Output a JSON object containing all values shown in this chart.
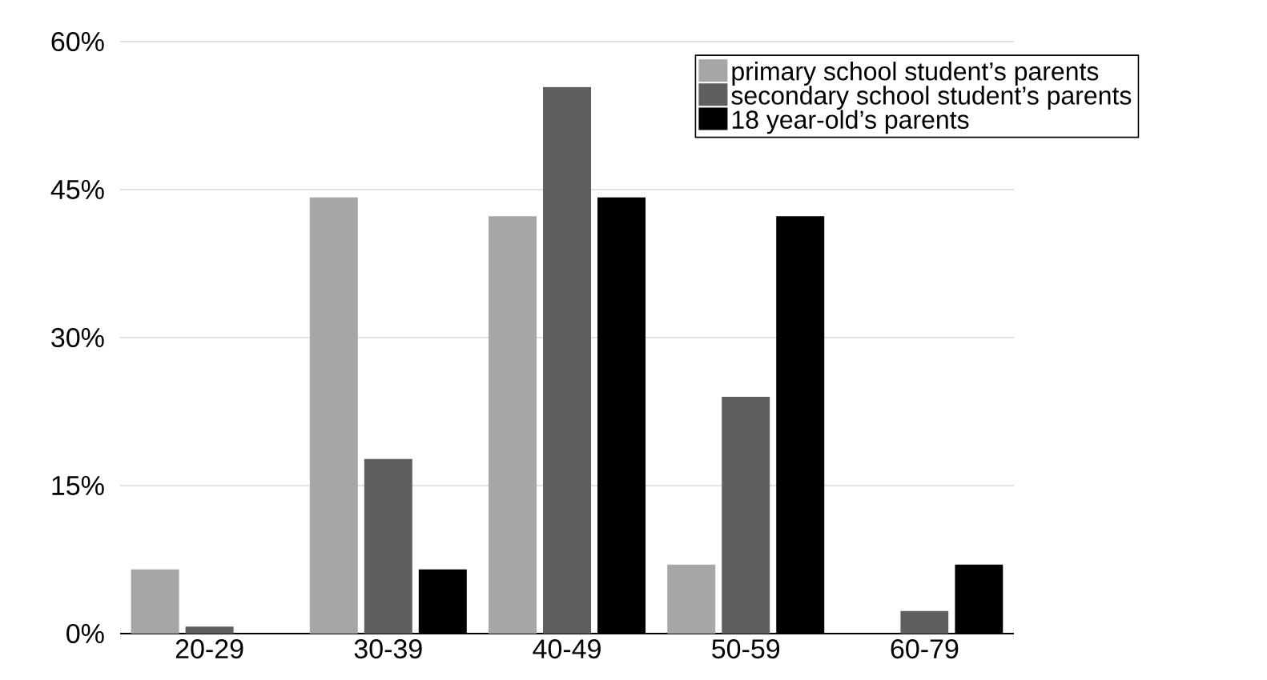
{
  "chart_data": {
    "type": "bar",
    "categories": [
      "20-29",
      "30-39",
      "40-49",
      "50-59",
      "60-79"
    ],
    "series": [
      {
        "name": "primary school student’s parents",
        "color": "#a6a6a6",
        "values": [
          6.5,
          44.2,
          42.3,
          7.0,
          0
        ]
      },
      {
        "name": "secondary school student’s parents",
        "color": "#5f5f5f",
        "values": [
          0.7,
          17.7,
          55.4,
          24.0,
          2.3
        ]
      },
      {
        "name": "18 year-old’s parents",
        "color": "#000000",
        "values": [
          0,
          6.5,
          44.2,
          42.3,
          7.0
        ]
      }
    ],
    "ylim": [
      0,
      60
    ],
    "yticks": [
      {
        "value": 0,
        "label": "0%"
      },
      {
        "value": 15,
        "label": "15%"
      },
      {
        "value": 30,
        "label": "30%"
      },
      {
        "value": 45,
        "label": "45%"
      },
      {
        "value": 60,
        "label": "60%"
      }
    ],
    "grid": "y",
    "legend": "top right"
  }
}
